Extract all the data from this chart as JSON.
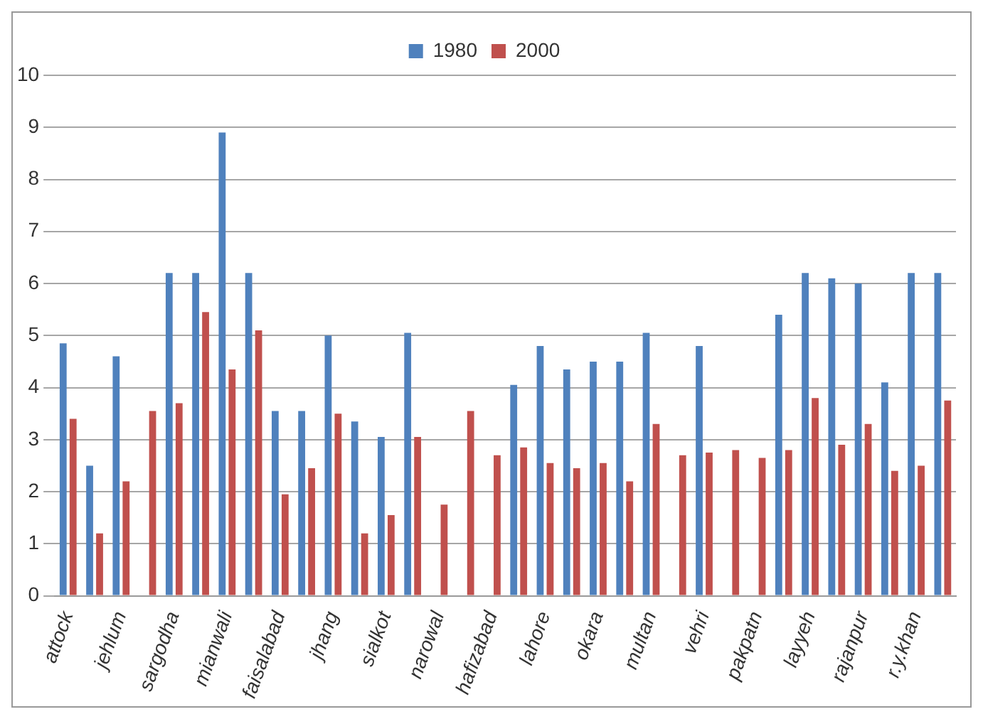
{
  "chart_data": {
    "type": "bar",
    "categories": [
      "attock",
      null,
      "jehlum",
      null,
      "sargodha",
      null,
      "mianwali",
      null,
      "faisalabad",
      null,
      "jhang",
      null,
      "sialkot",
      null,
      "narowal",
      null,
      "hafizabad",
      null,
      "lahore",
      null,
      "okara",
      null,
      "multan",
      null,
      "vehri",
      null,
      "pakpatn",
      null,
      "layyeh",
      null,
      "rajanpur",
      null,
      "r.y.khan",
      null
    ],
    "series": [
      {
        "name": "1980",
        "color": "#4f81bd",
        "values": [
          4.85,
          2.5,
          4.6,
          null,
          6.2,
          6.2,
          8.9,
          6.2,
          3.55,
          3.55,
          5.0,
          3.35,
          3.05,
          5.05,
          null,
          null,
          null,
          4.05,
          4.8,
          4.35,
          4.5,
          4.5,
          5.05,
          null,
          4.8,
          null,
          null,
          5.4,
          6.2,
          6.1,
          6.0,
          4.1,
          6.2,
          6.2
        ]
      },
      {
        "name": "2000",
        "color": "#c0504d",
        "values": [
          3.4,
          1.2,
          2.2,
          3.55,
          3.7,
          5.45,
          4.35,
          5.1,
          1.95,
          2.45,
          3.5,
          1.2,
          1.55,
          3.05,
          1.75,
          3.55,
          2.7,
          2.85,
          2.55,
          2.45,
          2.55,
          2.2,
          3.3,
          2.7,
          2.75,
          2.8,
          2.65,
          2.8,
          3.8,
          2.9,
          3.3,
          2.4,
          2.5,
          3.75
        ]
      }
    ],
    "ylim": [
      0,
      10
    ],
    "yticks": [
      0,
      1,
      2,
      3,
      4,
      5,
      6,
      7,
      8,
      9,
      10
    ],
    "grid": "y",
    "legend": "top"
  }
}
